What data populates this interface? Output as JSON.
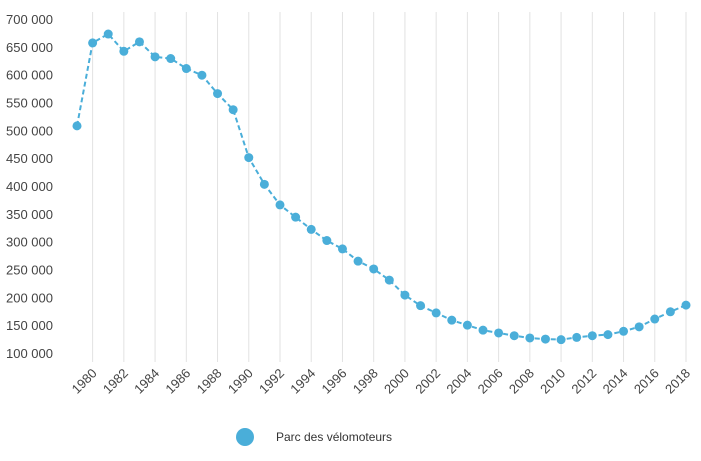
{
  "chart_data": {
    "type": "line",
    "title": "",
    "xlabel": "",
    "ylabel": "",
    "ylim": [
      100000,
      700000
    ],
    "yticks": [
      100000,
      150000,
      200000,
      250000,
      300000,
      350000,
      400000,
      450000,
      500000,
      550000,
      600000,
      650000,
      700000
    ],
    "ytick_labels": [
      "100 000",
      "150 000",
      "200 000",
      "250 000",
      "300 000",
      "350 000",
      "400 000",
      "450 000",
      "500 000",
      "550 000",
      "600 000",
      "650 000",
      "700 000"
    ],
    "xticks": [
      1980,
      1982,
      1984,
      1986,
      1988,
      1990,
      1992,
      1994,
      1996,
      1998,
      2000,
      2002,
      2004,
      2006,
      2008,
      2010,
      2012,
      2014,
      2016,
      2018
    ],
    "xtick_labels": [
      "1980",
      "1982",
      "1984",
      "1986",
      "1988",
      "1990",
      "1992",
      "1994",
      "1996",
      "1998",
      "2000",
      "2002",
      "2004",
      "2006",
      "2008",
      "2010",
      "2012",
      "2014",
      "2016",
      "2018"
    ],
    "x": [
      1979,
      1980,
      1981,
      1982,
      1983,
      1984,
      1985,
      1986,
      1987,
      1988,
      1989,
      1990,
      1991,
      1992,
      1993,
      1994,
      1995,
      1996,
      1997,
      1998,
      1999,
      2000,
      2001,
      2002,
      2003,
      2004,
      2005,
      2006,
      2007,
      2008,
      2009,
      2010,
      2011,
      2012,
      2013,
      2014,
      2015,
      2016,
      2017,
      2018
    ],
    "series": [
      {
        "name": "Parc des vélomoteurs",
        "color": "#4aaed9",
        "values": [
          508000,
          657000,
          673000,
          642000,
          659000,
          632000,
          629000,
          611000,
          599000,
          566000,
          537000,
          451000,
          403000,
          366000,
          344000,
          322000,
          302000,
          287000,
          265000,
          251000,
          231000,
          204000,
          185000,
          172000,
          159000,
          150000,
          141000,
          136000,
          131000,
          127000,
          125000,
          124000,
          128000,
          131000,
          133000,
          139000,
          147000,
          161000,
          174000,
          186000
        ]
      }
    ],
    "grid": "vertical",
    "legend_position": "bottom"
  },
  "colors": {
    "series": "#4aaed9",
    "grid": "#e2e2e2",
    "text": "#444444"
  }
}
